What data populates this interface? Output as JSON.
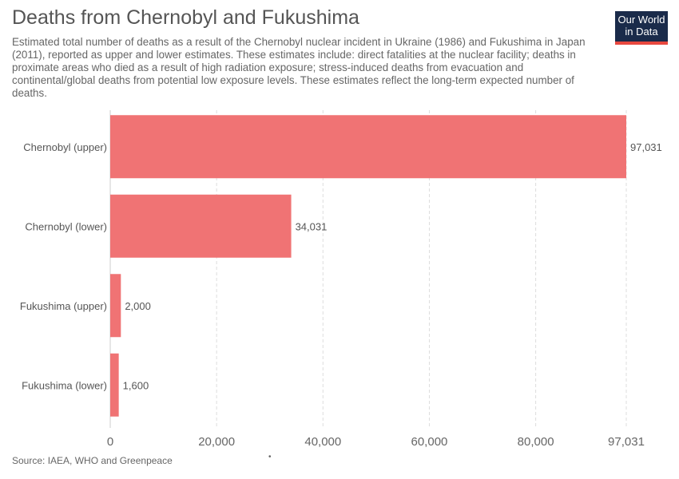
{
  "header": {
    "title": "Deaths from Chernobyl and Fukushima",
    "subtitle": "Estimated total number of deaths as a result of the Chernobyl nuclear incident in Ukraine (1986) and Fukushima in Japan (2011), reported as upper and lower estimates. These estimates include: direct fatalities at the nuclear facility; deaths in proximate areas who died as a result of high radiation exposure; stress-induced deaths from evacuation and continental/global deaths from potential low exposure levels. These estimates reflect the long-term expected number of deaths."
  },
  "logo": {
    "line1": "Our World",
    "line2": "in Data",
    "bg_color": "#1a2b4a",
    "accent_color": "#e8483f"
  },
  "footer": {
    "source": "Source: IAEA, WHO and Greenpeace",
    "dot": "•"
  },
  "chart_data": {
    "type": "bar",
    "orientation": "horizontal",
    "categories": [
      "Chernobyl (upper)",
      "Chernobyl (lower)",
      "Fukushima (upper)",
      "Fukushima (lower)"
    ],
    "values": [
      97031,
      34031,
      2000,
      1600
    ],
    "value_labels": [
      "97,031",
      "34,031",
      "2,000",
      "1,600"
    ],
    "xlim": [
      0,
      97031
    ],
    "x_ticks": [
      0,
      20000,
      40000,
      60000,
      80000,
      97031
    ],
    "x_tick_labels": [
      "0",
      "20,000",
      "40,000",
      "60,000",
      "80,000",
      "97,031"
    ],
    "grid": true,
    "bar_color": "#f07374"
  }
}
